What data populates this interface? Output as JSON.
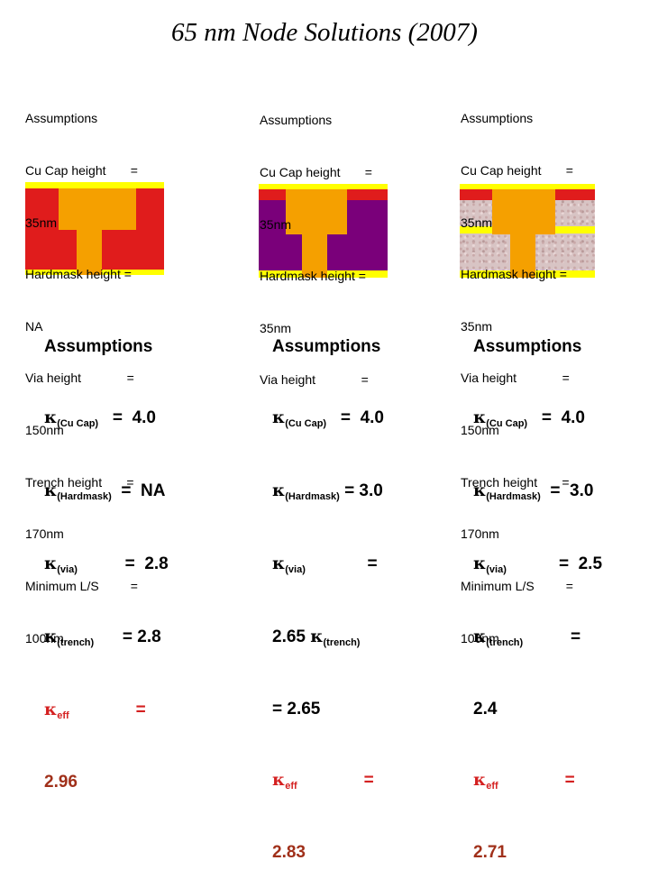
{
  "title": "65 nm Node Solutions (2007)",
  "colors": {
    "red": "#e01c1c",
    "yellow": "#ffff00",
    "orange": "#f5a000",
    "purple": "#7a007a",
    "kappa_red": "#d42020",
    "eff_value": "#a0301a"
  },
  "panels": [
    {
      "assumptions": [
        "Assumptions",
        "Cu Cap height       =",
        "35nm",
        "Hardmask height =",
        "NA",
        "Via height             =",
        "150nm",
        "Trench height       =",
        "170nm",
        "Minimum L/S         =",
        "100nm"
      ],
      "kappa": {
        "heading": "Assumptions",
        "cu_label": "(Cu Cap)",
        "cu_value": "=  4.0",
        "hm_label": "(Hardmask)",
        "hm_value": "=  NA",
        "via_label": "(via)",
        "via_value": "=  2.8",
        "trench_label": "(trench)",
        "trench_value": "= 2.8",
        "eff_label": "eff",
        "eff_eq": "=",
        "eff_value": "2.96"
      }
    },
    {
      "assumptions": [
        "Assumptions",
        "Cu Cap height       =",
        "35nm",
        "Hardmask height =",
        "35nm",
        "Via height             ="
      ],
      "kappa": {
        "heading": "Assumptions",
        "cu_label": "(Cu Cap)",
        "cu_value": "=  4.0",
        "hm_label": "(Hardmask)",
        "hm_value": "= 3.0",
        "via_label": "(via)",
        "via_value": "=",
        "via_cont": "2.65",
        "trench_label": "(trench)",
        "trench_cont": "= 2.65",
        "eff_label": "eff",
        "eff_eq": "=",
        "eff_value": "2.83"
      }
    },
    {
      "assumptions": [
        "Assumptions",
        "Cu Cap height       =",
        "35nm",
        "Hardmask height =",
        "35nm",
        "Via height             =",
        "150nm",
        "Trench height       =",
        "170nm",
        "Minimum L/S         =",
        "100nm"
      ],
      "kappa": {
        "heading": "Assumptions",
        "cu_label": "(Cu Cap)",
        "cu_value": "=  4.0",
        "hm_label": "(Hardmask)",
        "hm_value": "=  3.0",
        "via_label": "(via)",
        "via_value": "=  2.5",
        "trench_label": "(trench)",
        "trench_value": "=",
        "trench_cont": "2.4",
        "eff_label": "eff",
        "eff_eq": "=",
        "eff_value": "2.71"
      }
    }
  ]
}
